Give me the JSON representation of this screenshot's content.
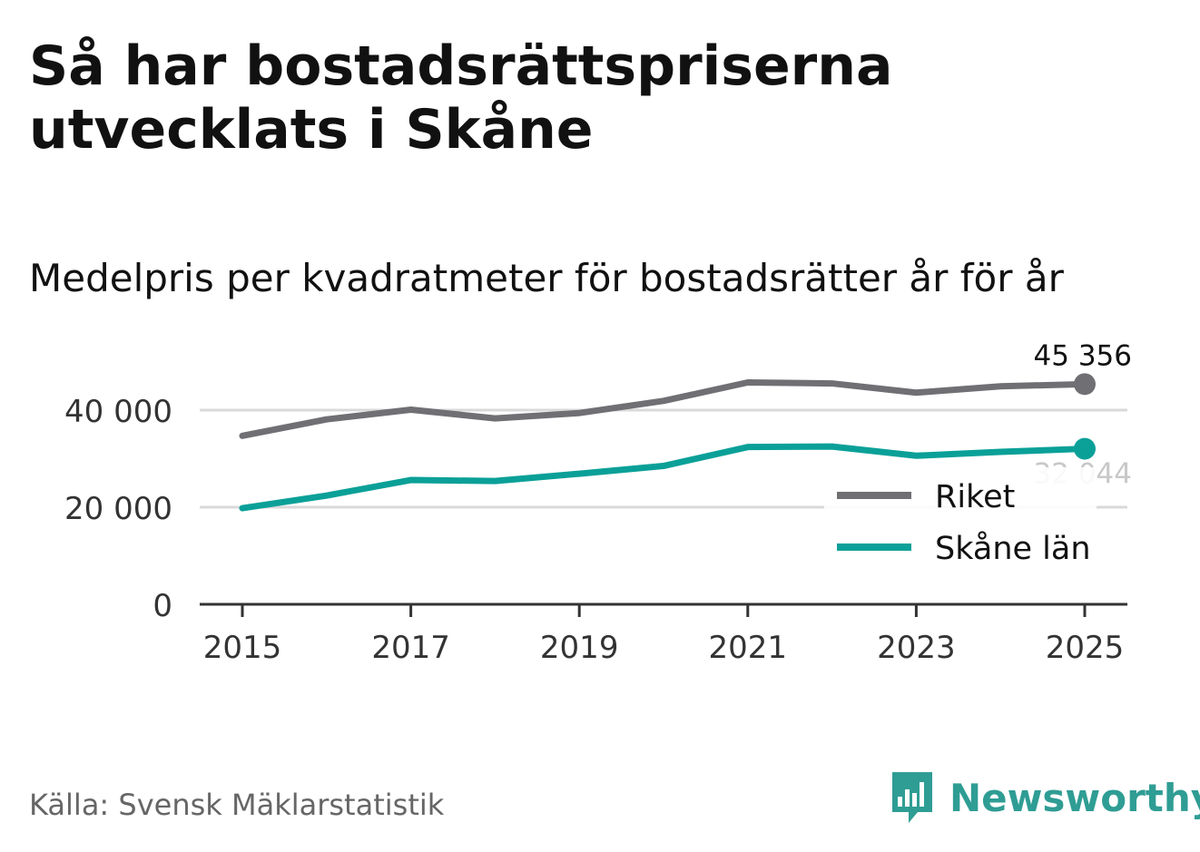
{
  "title": "Så har bostadsrättspriserna utvecklats i Skåne",
  "subtitle": "Medelpris per kvadratmeter för bostadsrätter år för år",
  "source": "Källa: Svensk Mäklarstatistik",
  "brand": "Newsworthy",
  "colors": {
    "riket": "#706f73",
    "skane": "#0aa098",
    "grid": "#d9d9d9",
    "axis": "#333333",
    "brand": "#2f9d94"
  },
  "chart_data": {
    "type": "line",
    "title": "Medelpris per kvadratmeter för bostadsrätter år för år",
    "xlabel": "",
    "ylabel": "",
    "x": [
      2015,
      2016,
      2017,
      2018,
      2019,
      2020,
      2021,
      2022,
      2023,
      2024,
      2025
    ],
    "xticks": [
      "2015",
      "2017",
      "2019",
      "2021",
      "2023",
      "2025"
    ],
    "xlim": [
      2015,
      2025
    ],
    "ylim": [
      0,
      50000
    ],
    "yticks": [
      {
        "value": 0,
        "label": "0"
      },
      {
        "value": 20000,
        "label": "20 000"
      },
      {
        "value": 40000,
        "label": "40 000"
      }
    ],
    "grid": true,
    "legend": "bottom-right",
    "series": [
      {
        "name": "Riket",
        "key": "riket",
        "values": [
          34700,
          38100,
          40100,
          38300,
          39400,
          41900,
          45700,
          45500,
          43600,
          44900,
          45356
        ],
        "end_label": "45 356"
      },
      {
        "name": "Skåne län",
        "key": "skane",
        "values": [
          19800,
          22400,
          25600,
          25400,
          26900,
          28500,
          32400,
          32500,
          30600,
          31400,
          32044
        ],
        "end_label": "32 044"
      }
    ]
  }
}
